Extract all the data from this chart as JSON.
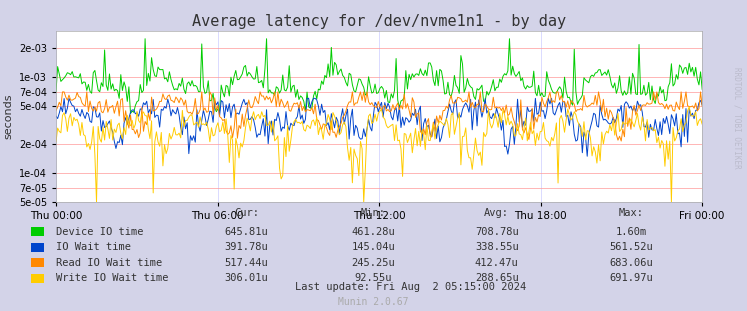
{
  "title": "Average latency for /dev/nvme1n1 - by day",
  "ylabel": "seconds",
  "right_label": "RRDTOOL / TOBI OETIKER",
  "background_color": "#d3d3e8",
  "plot_bg_color": "#ffffff",
  "grid_color": "#ff9999",
  "vgrid_color": "#ccccff",
  "ylim_log_min": 5e-05,
  "ylim_log_max": 0.003,
  "x_tick_labels": [
    "Thu 00:00",
    "Thu 06:00",
    "Thu 12:00",
    "Thu 18:00",
    "Fri 00:00"
  ],
  "legend_labels": [
    "Device IO time",
    "IO Wait time",
    "Read IO Wait time",
    "Write IO Wait time"
  ],
  "legend_colors": [
    "#00cc00",
    "#0044cc",
    "#ff8800",
    "#ffcc00"
  ],
  "footer_cur": [
    "645.81u",
    "391.78u",
    "517.44u",
    "306.01u"
  ],
  "footer_min": [
    "461.28u",
    "145.04u",
    "245.25u",
    "92.55u"
  ],
  "footer_avg": [
    "708.78u",
    "338.55u",
    "412.47u",
    "288.65u"
  ],
  "footer_max": [
    "1.60m",
    "561.52u",
    "683.06u",
    "691.97u"
  ],
  "footer_text": "Last update: Fri Aug  2 05:15:00 2024",
  "munin_text": "Munin 2.0.67",
  "num_points": 400
}
